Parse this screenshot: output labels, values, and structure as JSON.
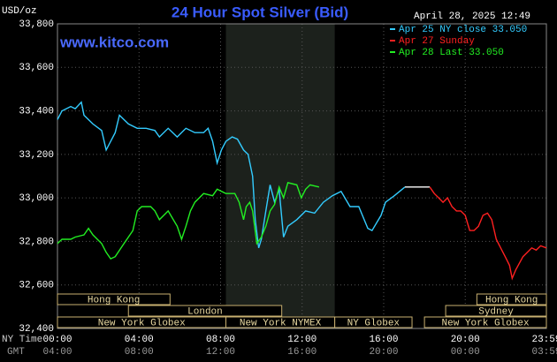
{
  "chart_data": {
    "type": "line",
    "title": "24 Hour Spot Silver (Bid)",
    "timestamp": "April 28, 2025 12:49",
    "units": "USD/oz",
    "watermark": "www.kitco.com",
    "x_label": "NY Time",
    "x2_label": "GMT",
    "xlim": [
      0,
      23.98
    ],
    "xticks": [
      {
        "value": 0,
        "label": "00:00"
      },
      {
        "value": 4,
        "label": "04:00"
      },
      {
        "value": 8,
        "label": "08:00"
      },
      {
        "value": 12,
        "label": "12:00"
      },
      {
        "value": 16,
        "label": "16:00"
      },
      {
        "value": 20,
        "label": "20:00"
      },
      {
        "value": 23.98,
        "label": "23:59"
      }
    ],
    "x2ticks": [
      "04:00",
      "08:00",
      "12:00",
      "16:00",
      "20:00",
      "00:00",
      "03:59"
    ],
    "ylim": [
      32400,
      33800
    ],
    "yticks": [
      {
        "value": 32400,
        "label": "32,400"
      },
      {
        "value": 32600,
        "label": "32,600"
      },
      {
        "value": 32800,
        "label": "32,800"
      },
      {
        "value": 33000,
        "label": "33,000"
      },
      {
        "value": 33200,
        "label": "33,200"
      },
      {
        "value": 33400,
        "label": "33,400"
      },
      {
        "value": 33600,
        "label": "33,600"
      },
      {
        "value": 33800,
        "label": "33,800"
      }
    ],
    "grid": true,
    "legend": "top-right",
    "sessions": [
      [
        {
          "label": "Hong Kong",
          "start": 0,
          "end": 5.52
        },
        {
          "label": "Hong Kong",
          "start": 20.57,
          "end": 23.98
        }
      ],
      [
        {
          "label": "London",
          "start": 3.48,
          "end": 11.0
        },
        {
          "label": "Sydney",
          "start": 19.04,
          "end": 23.98
        }
      ],
      [
        {
          "label": "New York Globex",
          "start": 0,
          "end": 8.26
        },
        {
          "label": "New York NYMEX",
          "start": 8.26,
          "end": 13.6
        },
        {
          "label": "NY Globex",
          "start": 13.6,
          "end": 17.39
        },
        {
          "label": "New York Globex",
          "start": 18.0,
          "end": 23.98
        }
      ]
    ],
    "series": [
      {
        "name": "Apr 25 NY close 33.050",
        "color": "#33ccff",
        "x": [
          0,
          0.22,
          0.65,
          0.87,
          1.17,
          1.3,
          1.74,
          2.17,
          2.39,
          2.83,
          3.04,
          3.48,
          3.91,
          4.35,
          4.78,
          5.0,
          5.43,
          5.87,
          6.3,
          6.74,
          7.17,
          7.39,
          7.61,
          7.83,
          8.04,
          8.26,
          8.57,
          8.83,
          9.13,
          9.35,
          9.57,
          9.7,
          9.87,
          10.0,
          10.22,
          10.43,
          10.65,
          10.87,
          11.09,
          11.3,
          11.74,
          12.17,
          12.61,
          13.04,
          13.48,
          13.91,
          14.35,
          14.78,
          15.22,
          15.43,
          15.87,
          16.09,
          16.52,
          17.04
        ],
        "values": [
          33360,
          33400,
          33420,
          33410,
          33440,
          33380,
          33340,
          33310,
          33220,
          33300,
          33380,
          33340,
          33320,
          33320,
          33310,
          33280,
          33320,
          33280,
          33320,
          33300,
          33300,
          33320,
          33260,
          33160,
          33220,
          33260,
          33280,
          33270,
          33220,
          33200,
          33100,
          32900,
          32770,
          32810,
          32940,
          33060,
          32980,
          33040,
          32820,
          32870,
          32900,
          32940,
          32930,
          32980,
          33010,
          33030,
          32960,
          32960,
          32860,
          32850,
          32920,
          32980,
          33010,
          33050
        ]
      },
      {
        "color": "#ffffff",
        "x": [
          17.04,
          18.26
        ],
        "values": [
          33050,
          33050
        ]
      },
      {
        "name": "Apr 27 Sunday",
        "color": "#ff2020",
        "x": [
          18.26,
          18.48,
          18.7,
          18.91,
          19.13,
          19.35,
          19.57,
          19.78,
          20.0,
          20.22,
          20.43,
          20.65,
          20.87,
          21.09,
          21.3,
          21.52,
          21.74,
          21.96,
          22.17,
          22.3,
          22.48,
          22.83,
          23.26,
          23.48,
          23.7,
          23.98
        ],
        "values": [
          33050,
          33020,
          33000,
          32980,
          33000,
          32960,
          32940,
          32940,
          32920,
          32850,
          32850,
          32870,
          32920,
          32930,
          32900,
          32810,
          32770,
          32730,
          32690,
          32630,
          32670,
          32730,
          32770,
          32760,
          32780,
          32770
        ]
      },
      {
        "name": "Apr 28 Last 33.050",
        "color": "#22ee22",
        "x": [
          0,
          0.22,
          0.65,
          0.87,
          1.3,
          1.52,
          1.74,
          2.17,
          2.39,
          2.61,
          2.83,
          3.26,
          3.7,
          3.91,
          4.13,
          4.57,
          4.78,
          5.0,
          5.43,
          5.87,
          6.09,
          6.3,
          6.52,
          6.74,
          7.17,
          7.61,
          7.83,
          8.26,
          8.7,
          8.91,
          9.13,
          9.26,
          9.43,
          9.57,
          9.78,
          10.0,
          10.22,
          10.43,
          10.65,
          10.87,
          11.09,
          11.3,
          11.74,
          11.96,
          12.17,
          12.39,
          12.83
        ],
        "values": [
          32790,
          32810,
          32810,
          32820,
          32830,
          32860,
          32830,
          32790,
          32750,
          32720,
          32730,
          32790,
          32850,
          32940,
          32960,
          32960,
          32940,
          32900,
          32940,
          32870,
          32810,
          32870,
          32940,
          32980,
          33020,
          33010,
          33040,
          33020,
          33020,
          32980,
          32900,
          32960,
          32980,
          32940,
          32790,
          32820,
          32870,
          32940,
          32970,
          33050,
          33000,
          33070,
          33060,
          33000,
          33040,
          33060,
          33050
        ]
      }
    ]
  }
}
